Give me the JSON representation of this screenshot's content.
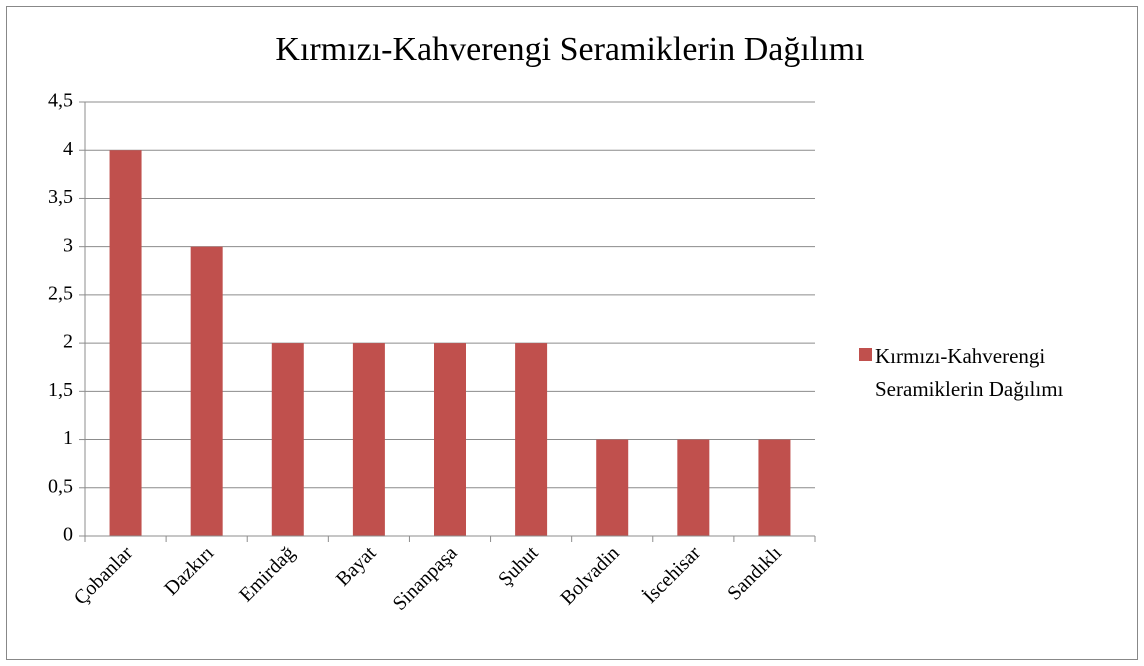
{
  "chart_data": {
    "type": "bar",
    "title": "Kırmızı-Kahverengi Seramiklerin Dağılımı",
    "categories": [
      "Çobanlar",
      "Dazkırı",
      "Emirdağ",
      "Bayat",
      "Sinanpaşa",
      "Şuhut",
      "Bolvadin",
      "İscehisar",
      "Sandıklı"
    ],
    "series": [
      {
        "name": "Kırmızı-Kahverengi Seramiklerin Dağılımı",
        "color": "#c0504d",
        "values": [
          4,
          3,
          2,
          2,
          2,
          2,
          1,
          1,
          1
        ]
      }
    ],
    "ylim": [
      0,
      4.5
    ],
    "yticks": [
      0,
      {
        "value": 0.5,
        "label": "0,5"
      },
      1,
      {
        "value": 1.5,
        "label": "1,5"
      },
      2,
      {
        "value": 2.5,
        "label": "2,5"
      },
      3,
      {
        "value": 3.5,
        "label": "3,5"
      },
      4,
      {
        "value": 4.5,
        "label": "4,5"
      }
    ],
    "grid": true,
    "legend": "right"
  }
}
